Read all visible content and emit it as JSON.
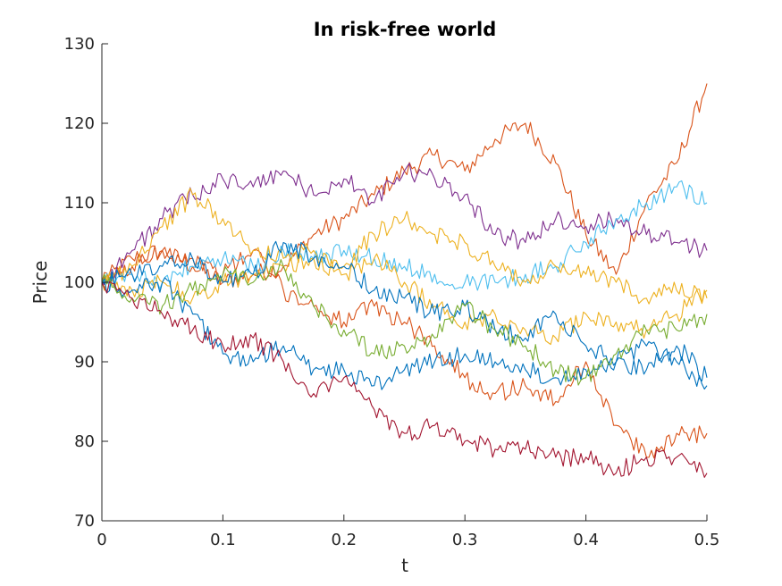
{
  "chart_data": {
    "type": "line",
    "title": "In risk-free world",
    "xlabel": "t",
    "ylabel": "Price",
    "xlim": [
      0,
      0.5
    ],
    "ylim": [
      70,
      130
    ],
    "xticks": [
      0,
      0.1,
      0.2,
      0.3,
      0.4,
      0.5
    ],
    "xtick_labels": [
      "0",
      "0.1",
      "0.2",
      "0.3",
      "0.4",
      "0.5"
    ],
    "yticks": [
      70,
      80,
      90,
      100,
      110,
      120,
      130
    ],
    "ytick_labels": [
      "70",
      "80",
      "90",
      "100",
      "110",
      "120",
      "130"
    ],
    "grid": false,
    "legend": "none",
    "series": [
      {
        "color": "#D95319",
        "x": [
          0,
          0.025,
          0.05,
          0.075,
          0.1,
          0.125,
          0.15,
          0.175,
          0.2,
          0.225,
          0.25,
          0.275,
          0.3,
          0.325,
          0.35,
          0.375,
          0.4,
          0.425,
          0.45,
          0.475,
          0.5
        ],
        "values": [
          100,
          103,
          104,
          102,
          100,
          101,
          102,
          106,
          108,
          111,
          114,
          116,
          114,
          118,
          120,
          115,
          106,
          101,
          110,
          115,
          125
        ]
      },
      {
        "color": "#D95319",
        "x": [
          0,
          0.025,
          0.05,
          0.075,
          0.1,
          0.125,
          0.15,
          0.175,
          0.2,
          0.225,
          0.25,
          0.275,
          0.3,
          0.325,
          0.35,
          0.375,
          0.4,
          0.425,
          0.45,
          0.475,
          0.5
        ],
        "values": [
          100,
          102,
          104,
          103,
          101,
          104,
          99,
          97,
          95,
          97,
          95,
          92,
          88,
          86,
          87,
          85,
          90,
          82,
          78,
          81,
          81
        ]
      },
      {
        "color": "#7E2F8E",
        "x": [
          0,
          0.025,
          0.05,
          0.075,
          0.1,
          0.125,
          0.15,
          0.175,
          0.2,
          0.225,
          0.25,
          0.275,
          0.3,
          0.325,
          0.35,
          0.375,
          0.4,
          0.425,
          0.45,
          0.475,
          0.5
        ],
        "values": [
          100,
          104,
          108,
          111,
          113,
          112,
          114,
          111,
          113,
          110,
          114,
          113,
          111,
          106,
          105,
          108,
          107,
          108,
          106,
          105,
          104
        ]
      },
      {
        "color": "#4DBEEE",
        "x": [
          0,
          0.025,
          0.05,
          0.075,
          0.1,
          0.125,
          0.15,
          0.175,
          0.2,
          0.225,
          0.25,
          0.275,
          0.3,
          0.325,
          0.35,
          0.375,
          0.4,
          0.425,
          0.45,
          0.475,
          0.5
        ],
        "values": [
          100,
          101,
          100,
          102,
          103,
          102,
          104,
          103,
          104,
          103,
          102,
          101,
          100,
          100,
          101,
          102,
          105,
          108,
          110,
          112,
          110
        ]
      },
      {
        "color": "#EDB120",
        "x": [
          0,
          0.025,
          0.05,
          0.075,
          0.1,
          0.125,
          0.15,
          0.175,
          0.2,
          0.225,
          0.25,
          0.275,
          0.3,
          0.325,
          0.35,
          0.375,
          0.4,
          0.425,
          0.45,
          0.475,
          0.5
        ],
        "values": [
          100,
          102,
          107,
          111,
          108,
          104,
          103,
          104,
          102,
          106,
          108,
          106,
          105,
          102,
          100,
          102,
          101,
          100,
          98,
          99,
          98
        ]
      },
      {
        "color": "#EDB120",
        "x": [
          0,
          0.025,
          0.05,
          0.075,
          0.1,
          0.125,
          0.15,
          0.175,
          0.2,
          0.225,
          0.25,
          0.275,
          0.3,
          0.325,
          0.35,
          0.375,
          0.4,
          0.425,
          0.45,
          0.475,
          0.5
        ],
        "values": [
          100,
          99,
          100,
          98,
          100,
          101,
          102,
          103,
          101,
          103,
          100,
          97,
          95,
          96,
          94,
          93,
          96,
          95,
          94,
          96,
          99
        ]
      },
      {
        "color": "#0072BD",
        "x": [
          0,
          0.025,
          0.05,
          0.075,
          0.1,
          0.125,
          0.15,
          0.175,
          0.2,
          0.225,
          0.25,
          0.275,
          0.3,
          0.325,
          0.35,
          0.375,
          0.4,
          0.425,
          0.45,
          0.475,
          0.5
        ],
        "values": [
          100,
          101,
          102,
          103,
          100,
          101,
          105,
          103,
          102,
          99,
          98,
          96,
          97,
          94,
          93,
          96,
          92,
          90,
          89,
          92,
          88
        ]
      },
      {
        "color": "#0072BD",
        "x": [
          0,
          0.025,
          0.05,
          0.075,
          0.1,
          0.125,
          0.15,
          0.175,
          0.2,
          0.225,
          0.25,
          0.275,
          0.3,
          0.325,
          0.35,
          0.375,
          0.4,
          0.425,
          0.45,
          0.475,
          0.5
        ],
        "values": [
          100,
          99,
          100,
          96,
          91,
          90,
          92,
          89,
          89,
          87,
          89,
          90,
          91,
          90,
          89,
          88,
          89,
          90,
          92,
          90,
          87
        ]
      },
      {
        "color": "#77AC30",
        "x": [
          0,
          0.025,
          0.05,
          0.075,
          0.1,
          0.125,
          0.15,
          0.175,
          0.2,
          0.225,
          0.25,
          0.275,
          0.3,
          0.325,
          0.35,
          0.375,
          0.4,
          0.425,
          0.45,
          0.475,
          0.5
        ],
        "values": [
          100,
          98,
          97,
          99,
          101,
          100,
          102,
          97,
          94,
          91,
          92,
          93,
          97,
          94,
          92,
          89,
          88,
          91,
          94,
          94,
          96
        ]
      },
      {
        "color": "#A2142F",
        "x": [
          0,
          0.025,
          0.05,
          0.075,
          0.1,
          0.125,
          0.15,
          0.175,
          0.2,
          0.225,
          0.25,
          0.275,
          0.3,
          0.325,
          0.35,
          0.375,
          0.4,
          0.425,
          0.45,
          0.475,
          0.5
        ],
        "values": [
          100,
          98,
          96,
          94,
          92,
          93,
          90,
          86,
          88,
          84,
          81,
          82,
          80,
          79,
          79,
          78,
          78,
          76,
          78,
          78,
          76
        ]
      }
    ]
  }
}
